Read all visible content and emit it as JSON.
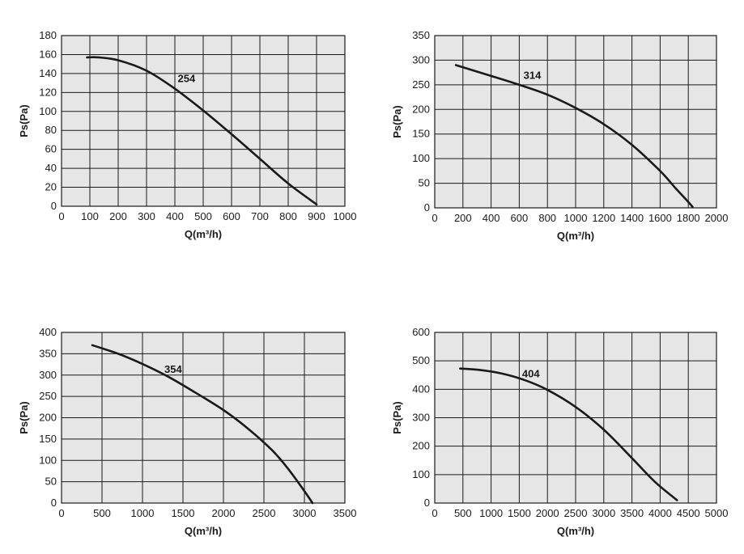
{
  "chart_data": [
    {
      "type": "line",
      "xlabel": "Q(m³/h)",
      "ylabel": "Ps(Pa)",
      "xlim": [
        0,
        1000
      ],
      "ylim": [
        0,
        180
      ],
      "xticks": [
        0,
        100,
        200,
        300,
        400,
        500,
        600,
        700,
        800,
        900,
        1000
      ],
      "yticks": [
        0,
        20,
        40,
        60,
        80,
        100,
        120,
        140,
        160,
        180
      ],
      "grid": true,
      "series": [
        {
          "name": "254",
          "x": [
            90,
            130,
            200,
            300,
            400,
            500,
            600,
            700,
            800,
            900
          ],
          "y": [
            157,
            157,
            154,
            143,
            124,
            101,
            76,
            50,
            24,
            2
          ]
        }
      ]
    },
    {
      "type": "line",
      "xlabel": "Q(m³/h)",
      "ylabel": "Ps(Pa)",
      "xlim": [
        0,
        2000
      ],
      "ylim": [
        0,
        350
      ],
      "xticks": [
        0,
        200,
        400,
        600,
        800,
        1000,
        1200,
        1400,
        1600,
        1800,
        2000
      ],
      "yticks": [
        0,
        50,
        100,
        150,
        200,
        250,
        300,
        350
      ],
      "grid": true,
      "series": [
        {
          "name": "314",
          "x": [
            150,
            400,
            600,
            800,
            1000,
            1200,
            1400,
            1600,
            1700,
            1800,
            1830
          ],
          "y": [
            290,
            268,
            250,
            230,
            203,
            170,
            128,
            75,
            43,
            12,
            2
          ]
        }
      ]
    },
    {
      "type": "line",
      "xlabel": "Q(m³/h)",
      "ylabel": "Ps(Pa)",
      "xlim": [
        0,
        3500
      ],
      "ylim": [
        0,
        400
      ],
      "xticks": [
        0,
        500,
        1000,
        1500,
        2000,
        2500,
        3000,
        3500
      ],
      "yticks": [
        0,
        50,
        100,
        150,
        200,
        250,
        300,
        350,
        400
      ],
      "grid": true,
      "series": [
        {
          "name": "354",
          "x": [
            380,
            700,
            1000,
            1300,
            1600,
            2000,
            2300,
            2600,
            2800,
            3000,
            3100
          ],
          "y": [
            370,
            350,
            326,
            298,
            265,
            218,
            175,
            124,
            80,
            28,
            0
          ]
        }
      ]
    },
    {
      "type": "line",
      "xlabel": "Q(m³/h)",
      "ylabel": "Ps(Pa)",
      "xlim": [
        0,
        5000
      ],
      "ylim": [
        0,
        600
      ],
      "xticks": [
        0,
        500,
        1000,
        1500,
        2000,
        2500,
        3000,
        3500,
        4000,
        4500,
        5000
      ],
      "yticks": [
        0,
        100,
        200,
        300,
        400,
        500,
        600
      ],
      "grid": true,
      "series": [
        {
          "name": "404",
          "x": [
            450,
            800,
            1200,
            1600,
            2000,
            2500,
            3000,
            3500,
            3900,
            4300
          ],
          "y": [
            473,
            468,
            455,
            432,
            398,
            338,
            258,
            158,
            76,
            10
          ]
        }
      ]
    }
  ]
}
